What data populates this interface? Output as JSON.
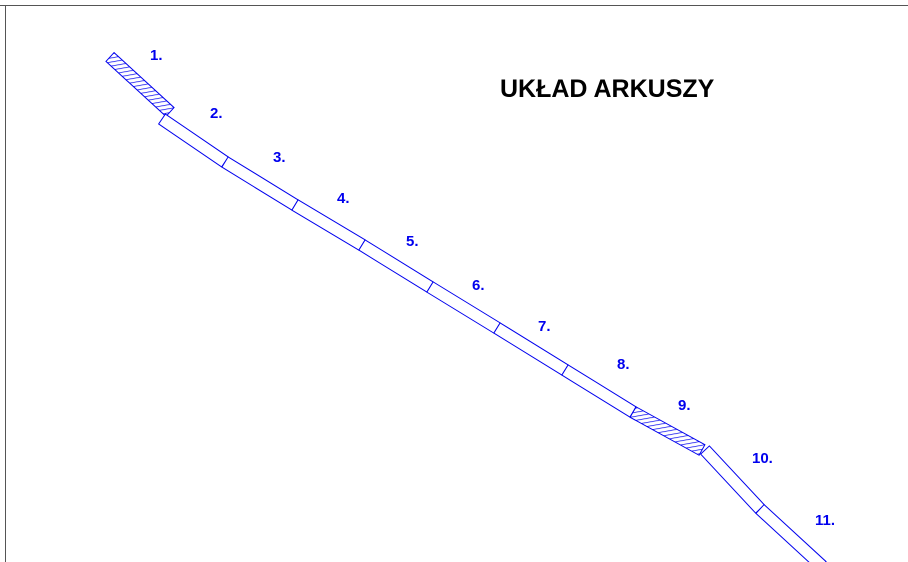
{
  "title": "UKŁAD ARKUSZY",
  "sheets": [
    {
      "label": "1.",
      "hatched": true
    },
    {
      "label": "2.",
      "hatched": false
    },
    {
      "label": "3.",
      "hatched": false
    },
    {
      "label": "4.",
      "hatched": false
    },
    {
      "label": "5.",
      "hatched": false
    },
    {
      "label": "6.",
      "hatched": false
    },
    {
      "label": "7.",
      "hatched": false
    },
    {
      "label": "8.",
      "hatched": false
    },
    {
      "label": "9.",
      "hatched": true
    },
    {
      "label": "10.",
      "hatched": false
    },
    {
      "label": "11.",
      "hatched": false
    }
  ]
}
